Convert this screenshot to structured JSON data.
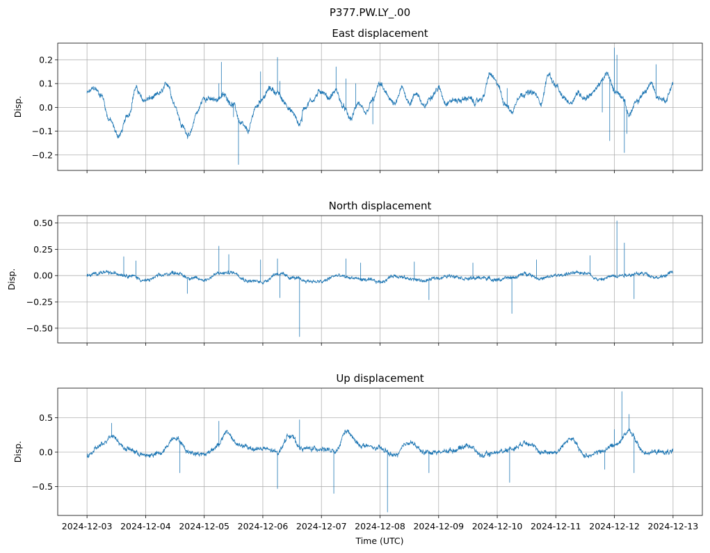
{
  "chart_data": {
    "suptitle": "P377.PW.LY_.00",
    "xlabel": "Time (UTC)",
    "x_ticks": [
      "2024-12-03",
      "2024-12-04",
      "2024-12-05",
      "2024-12-06",
      "2024-12-07",
      "2024-12-08",
      "2024-12-09",
      "2024-12-10",
      "2024-12-11",
      "2024-12-12",
      "2024-12-13"
    ],
    "x_range": [
      "2024-12-02T12:00",
      "2024-12-13T12:00"
    ],
    "line_color": "#1f77b4",
    "grid": true,
    "panels": [
      {
        "type": "line",
        "title": "East displacement",
        "ylabel": "Disp.",
        "ylim": [
          -0.265,
          0.27
        ],
        "y_ticks": [
          -0.2,
          -0.1,
          0.0,
          0.1,
          0.2
        ],
        "y_tick_labels": [
          "−0.2",
          "−0.1",
          "0.0",
          "0.1",
          "0.2"
        ],
        "show_x_labels": false,
        "noise": 0.01,
        "series_points": [
          [
            "2024-12-03T00:00",
            0.06
          ],
          [
            "2024-12-03T03:00",
            0.08
          ],
          [
            "2024-12-03T06:00",
            0.05
          ],
          [
            "2024-12-03T09:00",
            -0.05
          ],
          [
            "2024-12-03T13:00",
            -0.12
          ],
          [
            "2024-12-03T17:00",
            -0.03
          ],
          [
            "2024-12-03T20:00",
            0.08
          ],
          [
            "2024-12-03T23:00",
            0.03
          ],
          [
            "2024-12-04T03:00",
            0.04
          ],
          [
            "2024-12-04T06:00",
            0.06
          ],
          [
            "2024-12-04T09:00",
            0.1
          ],
          [
            "2024-12-04T12:00",
            0.01
          ],
          [
            "2024-12-04T15:00",
            -0.08
          ],
          [
            "2024-12-04T18:00",
            -0.12
          ],
          [
            "2024-12-04T21:00",
            -0.02
          ],
          [
            "2024-12-05T00:00",
            0.04
          ],
          [
            "2024-12-05T04:00",
            0.03
          ],
          [
            "2024-12-05T08:00",
            0.05
          ],
          [
            "2024-12-05T12:00",
            0.01
          ],
          [
            "2024-12-05T15:00",
            -0.07
          ],
          [
            "2024-12-05T18:00",
            -0.1
          ],
          [
            "2024-12-05T21:00",
            0.0
          ],
          [
            "2024-12-06T00:00",
            0.04
          ],
          [
            "2024-12-06T03:00",
            0.08
          ],
          [
            "2024-12-06T06:00",
            0.06
          ],
          [
            "2024-12-06T09:00",
            0.02
          ],
          [
            "2024-12-06T12:00",
            -0.02
          ],
          [
            "2024-12-06T15:00",
            -0.07
          ],
          [
            "2024-12-06T17:00",
            0.0
          ],
          [
            "2024-12-06T20:00",
            0.03
          ],
          [
            "2024-12-07T00:00",
            0.07
          ],
          [
            "2024-12-07T03:00",
            0.04
          ],
          [
            "2024-12-07T06:00",
            0.07
          ],
          [
            "2024-12-07T09:00",
            0.0
          ],
          [
            "2024-12-07T12:00",
            -0.05
          ],
          [
            "2024-12-07T15:00",
            0.02
          ],
          [
            "2024-12-07T18:00",
            -0.03
          ],
          [
            "2024-12-07T21:00",
            0.03
          ],
          [
            "2024-12-08T00:00",
            0.1
          ],
          [
            "2024-12-08T03:00",
            0.05
          ],
          [
            "2024-12-08T06:00",
            0.01
          ],
          [
            "2024-12-08T09:00",
            0.08
          ],
          [
            "2024-12-08T12:00",
            0.02
          ],
          [
            "2024-12-08T15:00",
            0.06
          ],
          [
            "2024-12-08T18:00",
            0.0
          ],
          [
            "2024-12-08T21:00",
            0.05
          ],
          [
            "2024-12-09T00:00",
            0.08
          ],
          [
            "2024-12-09T03:00",
            0.02
          ],
          [
            "2024-12-09T06:00",
            0.03
          ],
          [
            "2024-12-09T09:00",
            0.03
          ],
          [
            "2024-12-09T12:00",
            0.04
          ],
          [
            "2024-12-09T15:00",
            0.02
          ],
          [
            "2024-12-09T18:00",
            0.04
          ],
          [
            "2024-12-09T21:00",
            0.14
          ],
          [
            "2024-12-10T00:00",
            0.1
          ],
          [
            "2024-12-10T03:00",
            0.02
          ],
          [
            "2024-12-10T06:00",
            -0.02
          ],
          [
            "2024-12-10T09:00",
            0.05
          ],
          [
            "2024-12-10T12:00",
            0.06
          ],
          [
            "2024-12-10T15:00",
            0.06
          ],
          [
            "2024-12-10T18:00",
            0.02
          ],
          [
            "2024-12-10T21:00",
            0.14
          ],
          [
            "2024-12-11T00:00",
            0.09
          ],
          [
            "2024-12-11T03:00",
            0.04
          ],
          [
            "2024-12-11T06:00",
            0.02
          ],
          [
            "2024-12-11T09:00",
            0.06
          ],
          [
            "2024-12-11T12:00",
            0.04
          ],
          [
            "2024-12-11T15:00",
            0.06
          ],
          [
            "2024-12-11T18:00",
            0.1
          ],
          [
            "2024-12-11T21:00",
            0.14
          ],
          [
            "2024-12-12T00:00",
            0.07
          ],
          [
            "2024-12-12T03:00",
            0.05
          ],
          [
            "2024-12-12T06:00",
            -0.03
          ],
          [
            "2024-12-12T09:00",
            0.02
          ],
          [
            "2024-12-12T12:00",
            0.06
          ],
          [
            "2024-12-12T15:00",
            0.1
          ],
          [
            "2024-12-12T18:00",
            0.04
          ],
          [
            "2024-12-12T21:00",
            0.03
          ],
          [
            "2024-12-13T00:00",
            0.1
          ]
        ],
        "spikes": [
          [
            "2024-12-04T14:00",
            -0.05
          ],
          [
            "2024-12-05T06:00",
            0.1
          ],
          [
            "2024-12-05T07:00",
            0.19
          ],
          [
            "2024-12-05T12:00",
            -0.04
          ],
          [
            "2024-12-05T14:00",
            -0.24
          ],
          [
            "2024-12-05T23:00",
            0.15
          ],
          [
            "2024-12-06T06:00",
            0.21
          ],
          [
            "2024-12-06T07:00",
            0.11
          ],
          [
            "2024-12-06T16:00",
            -0.06
          ],
          [
            "2024-12-07T06:00",
            0.17
          ],
          [
            "2024-12-07T10:00",
            0.12
          ],
          [
            "2024-12-07T14:00",
            0.1
          ],
          [
            "2024-12-07T21:00",
            -0.07
          ],
          [
            "2024-12-09T20:00",
            0.12
          ],
          [
            "2024-12-10T04:00",
            0.08
          ],
          [
            "2024-12-11T19:00",
            -0.02
          ],
          [
            "2024-12-11T22:00",
            -0.14
          ],
          [
            "2024-12-12T00:00",
            0.25
          ],
          [
            "2024-12-12T01:00",
            0.22
          ],
          [
            "2024-12-12T04:00",
            -0.19
          ],
          [
            "2024-12-12T05:00",
            -0.11
          ],
          [
            "2024-12-12T17:00",
            0.18
          ]
        ]
      },
      {
        "type": "line",
        "title": "North displacement",
        "ylabel": "Disp.",
        "ylim": [
          -0.64,
          0.57
        ],
        "y_ticks": [
          -0.5,
          -0.25,
          0.0,
          0.25,
          0.5
        ],
        "y_tick_labels": [
          "−0.50",
          "−0.25",
          "0.00",
          "0.25",
          "0.50"
        ],
        "show_x_labels": false,
        "noise": 0.015,
        "series_points": [
          [
            "2024-12-03T00:00",
            0.0
          ],
          [
            "2024-12-03T06:00",
            0.03
          ],
          [
            "2024-12-03T12:00",
            0.02
          ],
          [
            "2024-12-03T18:00",
            0.0
          ],
          [
            "2024-12-04T00:00",
            -0.05
          ],
          [
            "2024-12-04T06:00",
            0.0
          ],
          [
            "2024-12-04T12:00",
            0.03
          ],
          [
            "2024-12-04T18:00",
            -0.02
          ],
          [
            "2024-12-05T00:00",
            -0.04
          ],
          [
            "2024-12-05T06:00",
            0.02
          ],
          [
            "2024-12-05T12:00",
            0.03
          ],
          [
            "2024-12-05T18:00",
            -0.05
          ],
          [
            "2024-12-06T00:00",
            -0.06
          ],
          [
            "2024-12-06T06:00",
            0.02
          ],
          [
            "2024-12-06T12:00",
            -0.02
          ],
          [
            "2024-12-06T18:00",
            -0.05
          ],
          [
            "2024-12-07T00:00",
            -0.06
          ],
          [
            "2024-12-07T06:00",
            0.0
          ],
          [
            "2024-12-07T12:00",
            -0.02
          ],
          [
            "2024-12-07T18:00",
            -0.04
          ],
          [
            "2024-12-08T00:00",
            -0.06
          ],
          [
            "2024-12-08T06:00",
            0.0
          ],
          [
            "2024-12-08T12:00",
            -0.03
          ],
          [
            "2024-12-08T18:00",
            -0.05
          ],
          [
            "2024-12-09T00:00",
            -0.02
          ],
          [
            "2024-12-09T06:00",
            0.0
          ],
          [
            "2024-12-09T12:00",
            -0.03
          ],
          [
            "2024-12-09T18:00",
            -0.02
          ],
          [
            "2024-12-10T00:00",
            -0.04
          ],
          [
            "2024-12-10T06:00",
            -0.02
          ],
          [
            "2024-12-10T12:00",
            0.02
          ],
          [
            "2024-12-10T18:00",
            -0.03
          ],
          [
            "2024-12-11T00:00",
            0.0
          ],
          [
            "2024-12-11T06:00",
            0.02
          ],
          [
            "2024-12-11T12:00",
            0.03
          ],
          [
            "2024-12-11T18:00",
            -0.04
          ],
          [
            "2024-12-12T00:00",
            0.0
          ],
          [
            "2024-12-12T06:00",
            0.01
          ],
          [
            "2024-12-12T12:00",
            0.02
          ],
          [
            "2024-12-12T18:00",
            -0.02
          ],
          [
            "2024-12-13T00:00",
            0.03
          ]
        ],
        "spikes": [
          [
            "2024-12-03T15:00",
            0.18
          ],
          [
            "2024-12-03T20:00",
            0.14
          ],
          [
            "2024-12-04T17:00",
            -0.17
          ],
          [
            "2024-12-05T06:00",
            0.28
          ],
          [
            "2024-12-05T10:00",
            0.2
          ],
          [
            "2024-12-05T23:00",
            0.15
          ],
          [
            "2024-12-06T06:00",
            0.16
          ],
          [
            "2024-12-06T07:00",
            -0.21
          ],
          [
            "2024-12-06T15:00",
            -0.58
          ],
          [
            "2024-12-07T10:00",
            0.16
          ],
          [
            "2024-12-07T16:00",
            0.12
          ],
          [
            "2024-12-08T14:00",
            0.13
          ],
          [
            "2024-12-08T20:00",
            -0.23
          ],
          [
            "2024-12-09T14:00",
            0.12
          ],
          [
            "2024-12-10T06:00",
            -0.36
          ],
          [
            "2024-12-10T16:00",
            0.15
          ],
          [
            "2024-12-11T14:00",
            0.19
          ],
          [
            "2024-12-12T01:00",
            0.52
          ],
          [
            "2024-12-12T04:00",
            0.31
          ],
          [
            "2024-12-12T08:00",
            -0.22
          ]
        ]
      },
      {
        "type": "line",
        "title": "Up displacement",
        "ylabel": "Disp.",
        "ylim": [
          -0.92,
          0.93
        ],
        "y_ticks": [
          -0.5,
          0.0,
          0.5
        ],
        "y_tick_labels": [
          "−0.5",
          "0.0",
          "0.5"
        ],
        "show_x_labels": true,
        "noise": 0.03,
        "series_points": [
          [
            "2024-12-03T00:00",
            -0.05
          ],
          [
            "2024-12-03T06:00",
            0.1
          ],
          [
            "2024-12-03T10:00",
            0.25
          ],
          [
            "2024-12-03T16:00",
            0.05
          ],
          [
            "2024-12-04T00:00",
            -0.05
          ],
          [
            "2024-12-04T06:00",
            -0.02
          ],
          [
            "2024-12-04T12:00",
            0.22
          ],
          [
            "2024-12-04T18:00",
            0.0
          ],
          [
            "2024-12-05T00:00",
            -0.03
          ],
          [
            "2024-12-05T06:00",
            0.1
          ],
          [
            "2024-12-05T09:00",
            0.3
          ],
          [
            "2024-12-05T14:00",
            0.1
          ],
          [
            "2024-12-05T20:00",
            0.05
          ],
          [
            "2024-12-06T00:00",
            0.05
          ],
          [
            "2024-12-06T06:00",
            0.0
          ],
          [
            "2024-12-06T11:00",
            0.25
          ],
          [
            "2024-12-06T16:00",
            0.05
          ],
          [
            "2024-12-07T00:00",
            0.05
          ],
          [
            "2024-12-07T06:00",
            0.0
          ],
          [
            "2024-12-07T10:00",
            0.3
          ],
          [
            "2024-12-07T16:00",
            0.1
          ],
          [
            "2024-12-08T00:00",
            0.05
          ],
          [
            "2024-12-08T06:00",
            -0.05
          ],
          [
            "2024-12-08T12:00",
            0.15
          ],
          [
            "2024-12-08T18:00",
            0.0
          ],
          [
            "2024-12-09T00:00",
            0.0
          ],
          [
            "2024-12-09T06:00",
            0.03
          ],
          [
            "2024-12-09T12:00",
            0.1
          ],
          [
            "2024-12-09T18:00",
            -0.05
          ],
          [
            "2024-12-10T00:00",
            0.0
          ],
          [
            "2024-12-10T06:00",
            0.05
          ],
          [
            "2024-12-10T12:00",
            0.15
          ],
          [
            "2024-12-10T18:00",
            0.0
          ],
          [
            "2024-12-11T00:00",
            0.0
          ],
          [
            "2024-12-11T06:00",
            0.2
          ],
          [
            "2024-12-11T12:00",
            -0.05
          ],
          [
            "2024-12-11T18:00",
            0.0
          ],
          [
            "2024-12-12T00:00",
            0.1
          ],
          [
            "2024-12-12T06:00",
            0.3
          ],
          [
            "2024-12-12T12:00",
            0.0
          ],
          [
            "2024-12-12T18:00",
            0.0
          ],
          [
            "2024-12-13T00:00",
            0.0
          ]
        ],
        "spikes": [
          [
            "2024-12-03T10:00",
            0.42
          ],
          [
            "2024-12-04T14:00",
            -0.3
          ],
          [
            "2024-12-05T06:00",
            0.45
          ],
          [
            "2024-12-06T06:00",
            -0.53
          ],
          [
            "2024-12-06T15:00",
            0.47
          ],
          [
            "2024-12-07T05:00",
            -0.6
          ],
          [
            "2024-12-08T03:00",
            -0.87
          ],
          [
            "2024-12-08T20:00",
            -0.3
          ],
          [
            "2024-12-10T05:00",
            -0.44
          ],
          [
            "2024-12-11T20:00",
            -0.25
          ],
          [
            "2024-12-12T00:00",
            0.33
          ],
          [
            "2024-12-12T03:00",
            0.88
          ],
          [
            "2024-12-12T06:00",
            0.55
          ],
          [
            "2024-12-12T08:00",
            -0.3
          ]
        ]
      }
    ]
  }
}
